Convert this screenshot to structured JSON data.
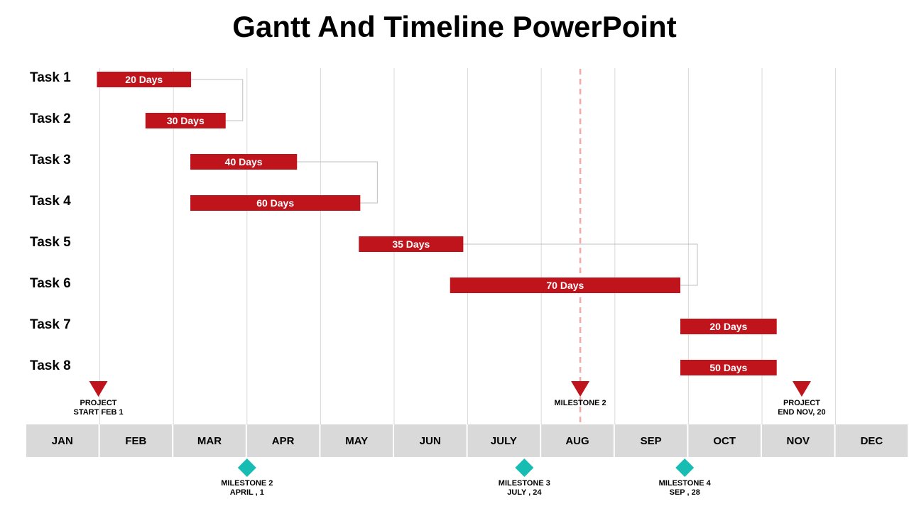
{
  "title": "Gantt And Timeline PowerPoint",
  "colors": {
    "bar": "#c0141c",
    "triangle": "#c0141c",
    "diamond": "#17bdb3",
    "month_cell": "#d9d9d9",
    "grid": "#d9d9d9",
    "connector": "#bfbfbf",
    "today_line": "#eda8a8"
  },
  "chart_data": {
    "type": "gantt",
    "months": [
      "JAN",
      "FEB",
      "MAR",
      "APR",
      "MAY",
      "JUN",
      "JULY",
      "AUG",
      "SEP",
      "OCT",
      "NOV",
      "DEC"
    ],
    "tasks": [
      {
        "name": "Task 1",
        "label": "20 Days",
        "start": 0.96,
        "end": 2.24
      },
      {
        "name": "Task 2",
        "label": "30 Days",
        "start": 1.62,
        "end": 2.71
      },
      {
        "name": "Task 3",
        "label": "40 Days",
        "start": 2.23,
        "end": 3.68
      },
      {
        "name": "Task 4",
        "label": "60 Days",
        "start": 2.23,
        "end": 4.54
      },
      {
        "name": "Task 5",
        "label": "35 Days",
        "start": 4.52,
        "end": 5.94
      },
      {
        "name": "Task 6",
        "label": "70 Days",
        "start": 5.76,
        "end": 8.89
      },
      {
        "name": "Task 7",
        "label": "20 Days",
        "start": 8.89,
        "end": 10.2
      },
      {
        "name": "Task 8",
        "label": "50 Days",
        "start": 8.89,
        "end": 10.2
      }
    ],
    "dependencies": [
      {
        "from": 1,
        "to": 2
      },
      {
        "from": 3,
        "to": 4
      },
      {
        "from": 5,
        "to": 6
      }
    ],
    "top_markers": [
      {
        "at": 0.98,
        "lines": [
          "PROJECT",
          "START FEB  1"
        ]
      },
      {
        "at": 7.53,
        "lines": [
          "MILESTONE 2"
        ]
      },
      {
        "at": 10.54,
        "lines": [
          "PROJECT",
          "END NOV, 20"
        ]
      }
    ],
    "bottom_markers": [
      {
        "at": 3.0,
        "lines": [
          "MILESTONE 2",
          "APRIL , 1"
        ]
      },
      {
        "at": 6.77,
        "lines": [
          "MILESTONE 3",
          "JULY , 24"
        ]
      },
      {
        "at": 8.95,
        "lines": [
          "MILESTONE 4",
          "SEP , 28"
        ]
      }
    ],
    "today_line": 7.53
  }
}
